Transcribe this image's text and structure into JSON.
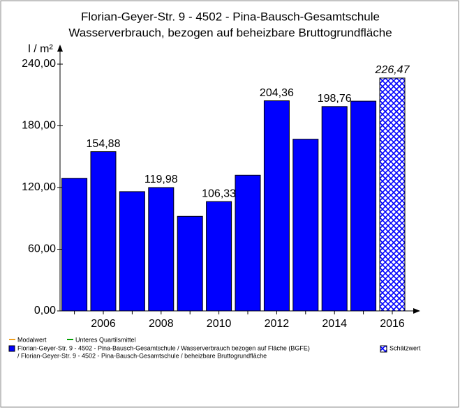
{
  "chart_data": {
    "type": "bar",
    "title": "Florian-Geyer-Str. 9 - 4502 - Pina-Bausch-Gesamtschule",
    "subtitle": "Wasserverbrauch, bezogen auf beheizbare Bruttogrundfläche",
    "y_label": "l / m²",
    "categories": [
      null,
      "2006",
      null,
      "2008",
      null,
      "2010",
      null,
      "2012",
      null,
      "2014",
      null,
      "2016"
    ],
    "series": [
      {
        "name_lines": [
          "Florian-Geyer-Str. 9 - 4502 - Pina-Bausch-Gesamtschule / Wasserverbrauch bezogen auf Fläche (BGFE)",
          "/ Florian-Geyer-Str. 9 - 4502 - Pina-Bausch-Gesamtschule / beheizbare Bruttogrundfläche"
        ],
        "color": "#0000ff",
        "values": [
          129,
          154.88,
          116,
          119.98,
          92,
          106.33,
          132,
          204.36,
          167,
          198.76,
          204,
          226.47
        ],
        "value_labels": [
          null,
          "154,88",
          null,
          "119,98",
          null,
          "106,33",
          null,
          "204,36",
          null,
          "198,76",
          null,
          "226,47"
        ],
        "estimated": [
          false,
          false,
          false,
          false,
          false,
          false,
          false,
          false,
          false,
          false,
          false,
          true
        ]
      }
    ],
    "legend": [
      {
        "name": "Modalwert",
        "color": "#f0a020"
      },
      {
        "name": "Unteres Quartilsmittel",
        "color": "#00a000"
      },
      {
        "name": "Schätzwert",
        "color": "#0000ff"
      }
    ],
    "ylim": [
      0,
      240
    ],
    "yticks": [
      {
        "value": 0,
        "label": "0,00"
      },
      {
        "value": 60,
        "label": "60,00"
      },
      {
        "value": 120,
        "label": "120,00"
      },
      {
        "value": 180,
        "label": "180,00"
      },
      {
        "value": 240,
        "label": "240,00"
      }
    ]
  }
}
